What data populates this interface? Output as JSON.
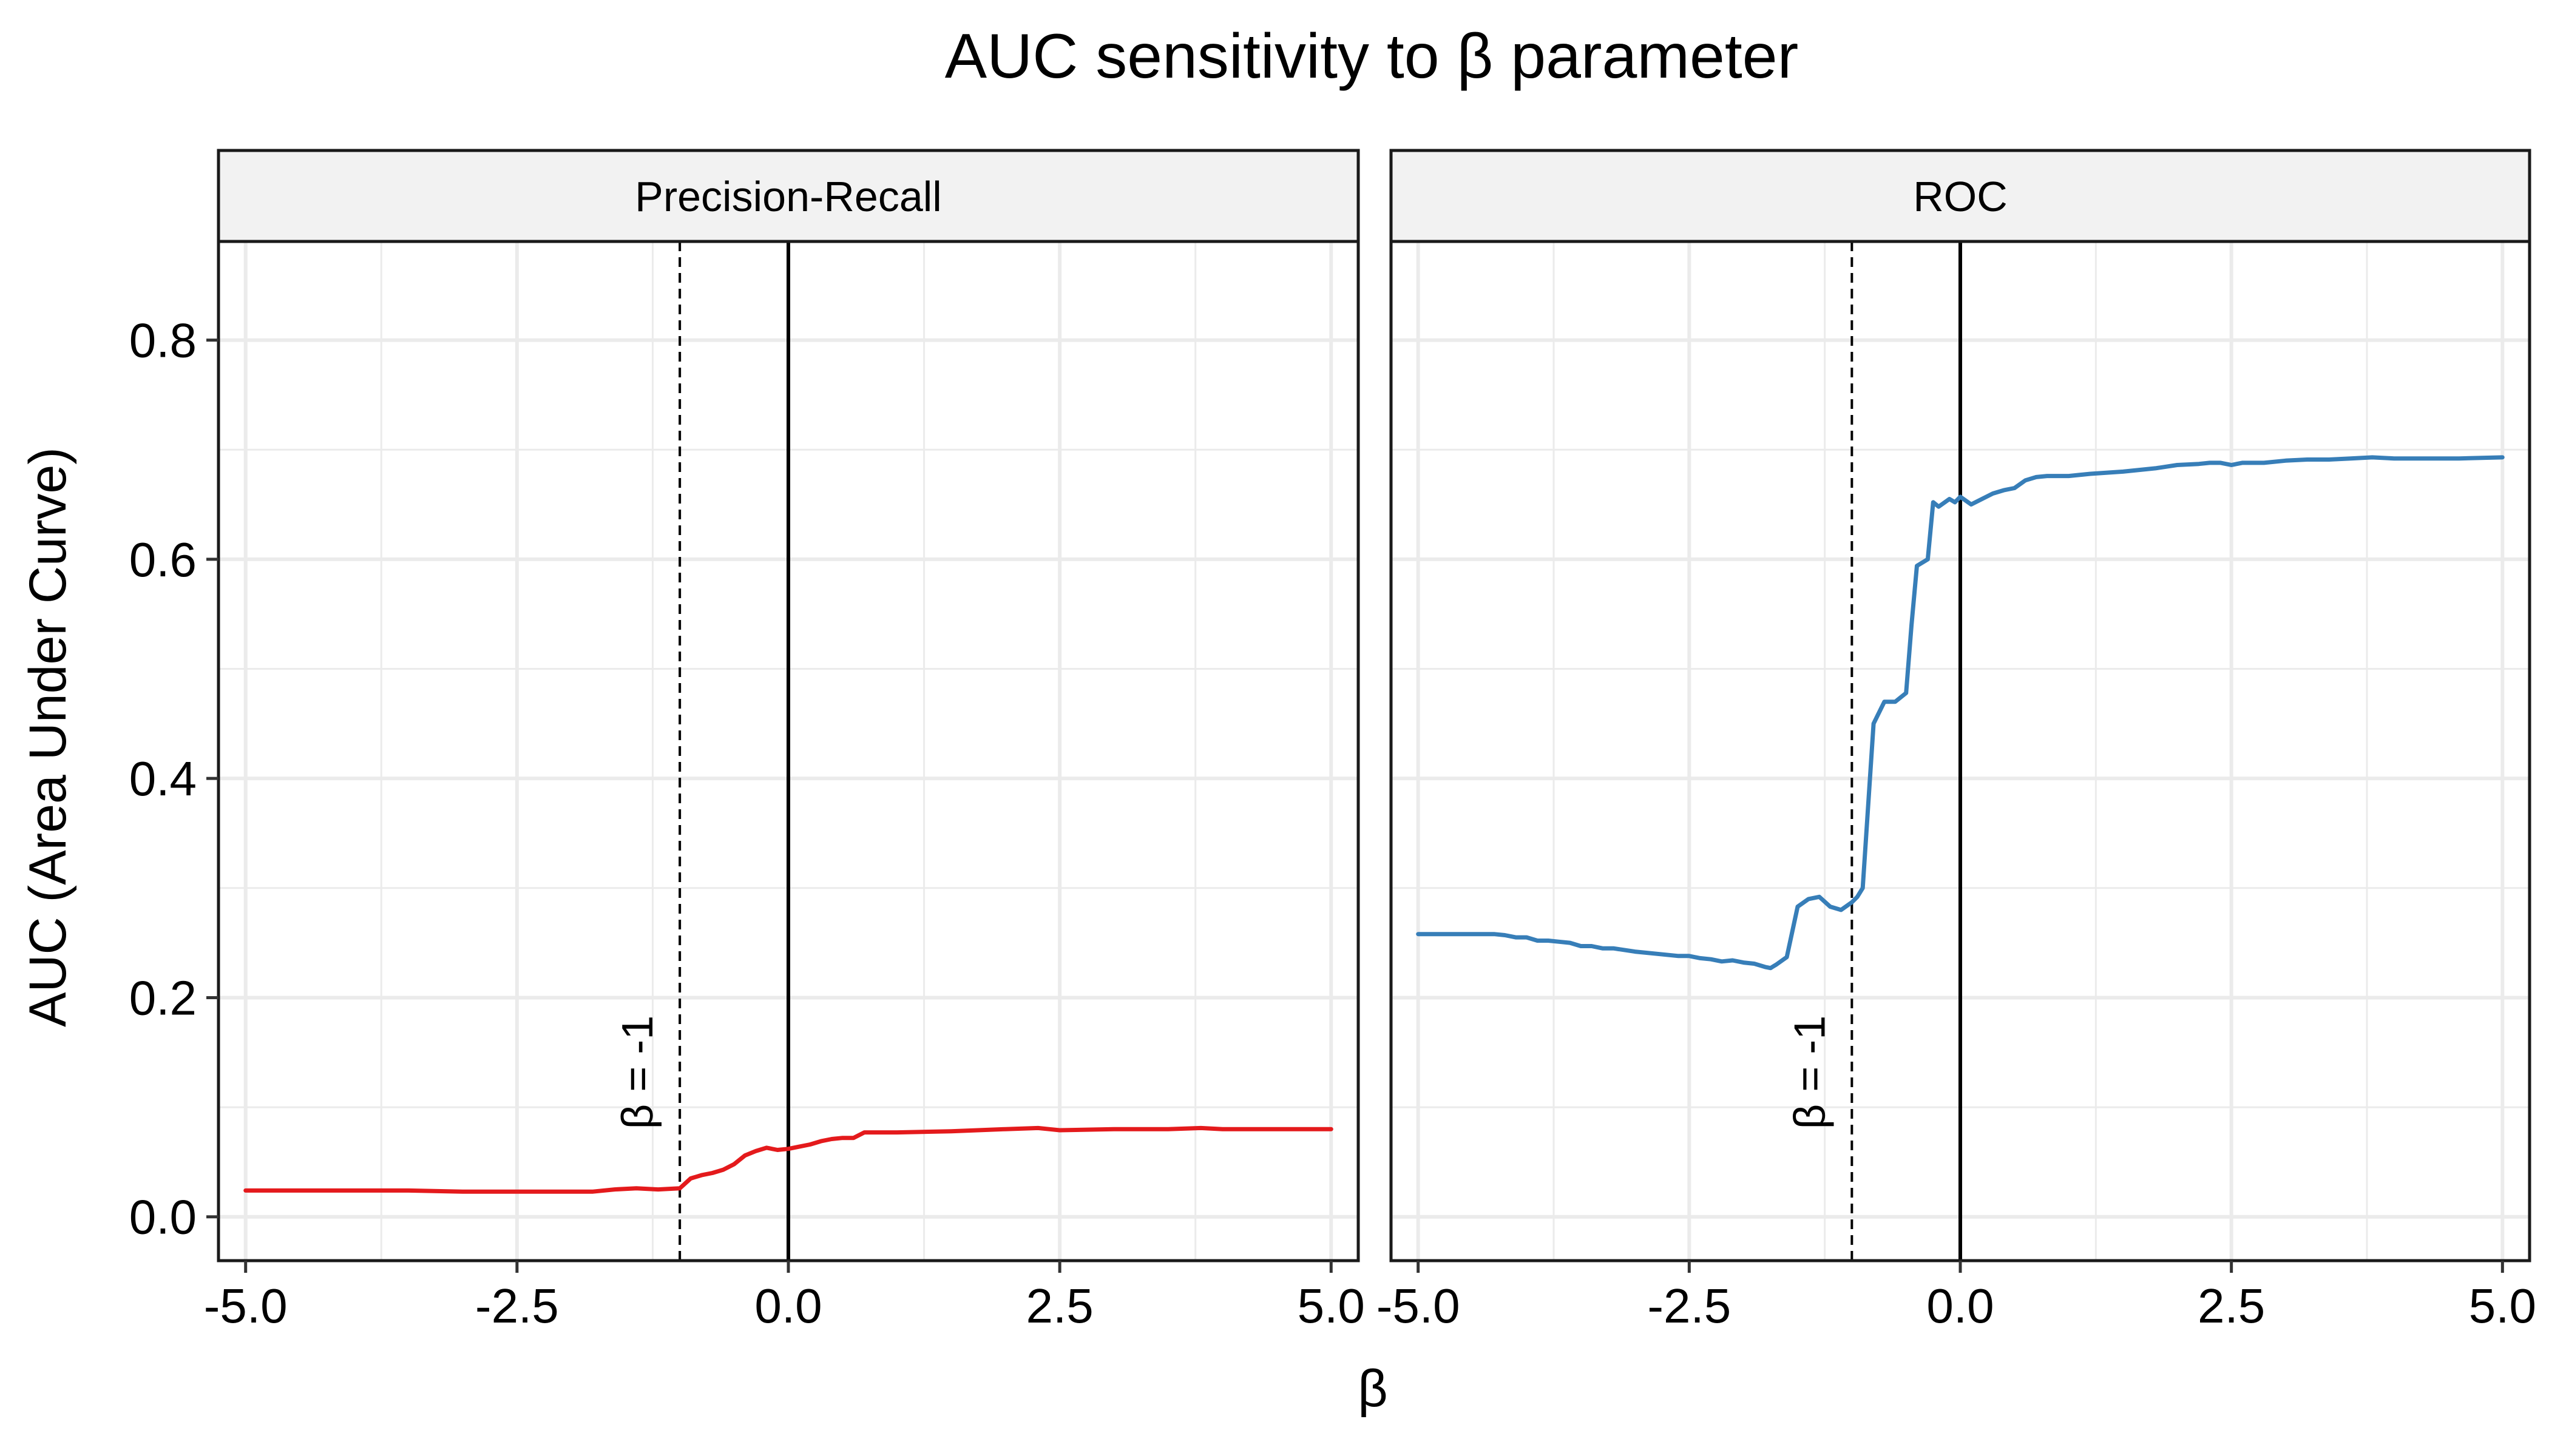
{
  "chart_data": {
    "type": "line",
    "title": "AUC sensitivity to β parameter",
    "xlabel": "β",
    "ylabel": "AUC (Area Under Curve)",
    "xlim": [
      -5.25,
      5.25
    ],
    "ylim": [
      -0.04,
      0.89
    ],
    "x_ticks": [
      "-5.0",
      "-2.5",
      "0.0",
      "2.5",
      "5.0"
    ],
    "y_ticks": [
      "0.0",
      "0.2",
      "0.4",
      "0.6",
      "0.8"
    ],
    "grid": true,
    "legend": "none",
    "reference_lines": [
      {
        "x": -1,
        "style": "dashed",
        "label": "β = -1"
      },
      {
        "x": 0,
        "style": "solid",
        "label": ""
      }
    ],
    "panels": [
      {
        "name": "Precision-Recall",
        "color": "#e41a1c",
        "x": [
          -5.0,
          -4.5,
          -4.0,
          -3.5,
          -3.0,
          -2.5,
          -2.0,
          -1.8,
          -1.6,
          -1.4,
          -1.2,
          -1.0,
          -0.9,
          -0.8,
          -0.7,
          -0.6,
          -0.5,
          -0.4,
          -0.3,
          -0.2,
          -0.1,
          0.0,
          0.1,
          0.2,
          0.3,
          0.4,
          0.5,
          0.6,
          0.7,
          0.8,
          1.0,
          1.5,
          2.0,
          2.3,
          2.4,
          2.5,
          3.0,
          3.5,
          3.8,
          4.0,
          4.5,
          5.0
        ],
        "y": [
          0.024,
          0.024,
          0.024,
          0.024,
          0.023,
          0.023,
          0.023,
          0.023,
          0.025,
          0.026,
          0.025,
          0.026,
          0.035,
          0.038,
          0.04,
          0.043,
          0.048,
          0.056,
          0.06,
          0.063,
          0.061,
          0.062,
          0.064,
          0.066,
          0.069,
          0.071,
          0.072,
          0.072,
          0.077,
          0.077,
          0.077,
          0.078,
          0.08,
          0.081,
          0.08,
          0.079,
          0.08,
          0.08,
          0.081,
          0.08,
          0.08,
          0.08
        ]
      },
      {
        "name": "ROC",
        "color": "#377eb8",
        "x": [
          -5.0,
          -4.5,
          -4.3,
          -4.2,
          -4.1,
          -4.0,
          -3.9,
          -3.8,
          -3.7,
          -3.6,
          -3.5,
          -3.4,
          -3.3,
          -3.2,
          -3.0,
          -2.8,
          -2.6,
          -2.5,
          -2.4,
          -2.3,
          -2.2,
          -2.1,
          -2.0,
          -1.9,
          -1.8,
          -1.75,
          -1.7,
          -1.6,
          -1.5,
          -1.4,
          -1.3,
          -1.2,
          -1.1,
          -1.0,
          -0.95,
          -0.9,
          -0.8,
          -0.7,
          -0.6,
          -0.5,
          -0.45,
          -0.4,
          -0.3,
          -0.25,
          -0.2,
          -0.1,
          -0.05,
          0.0,
          0.1,
          0.2,
          0.3,
          0.4,
          0.5,
          0.6,
          0.7,
          0.8,
          1.0,
          1.2,
          1.5,
          1.8,
          2.0,
          2.2,
          2.3,
          2.4,
          2.5,
          2.6,
          2.8,
          3.0,
          3.2,
          3.4,
          3.6,
          3.8,
          4.0,
          4.3,
          4.6,
          5.0
        ],
        "y": [
          0.258,
          0.258,
          0.258,
          0.257,
          0.255,
          0.255,
          0.252,
          0.252,
          0.251,
          0.25,
          0.247,
          0.247,
          0.245,
          0.245,
          0.242,
          0.24,
          0.238,
          0.238,
          0.236,
          0.235,
          0.233,
          0.234,
          0.232,
          0.231,
          0.228,
          0.227,
          0.23,
          0.237,
          0.283,
          0.29,
          0.292,
          0.283,
          0.28,
          0.287,
          0.292,
          0.3,
          0.45,
          0.47,
          0.47,
          0.478,
          0.54,
          0.594,
          0.6,
          0.652,
          0.648,
          0.655,
          0.652,
          0.657,
          0.65,
          0.655,
          0.66,
          0.663,
          0.665,
          0.672,
          0.675,
          0.676,
          0.676,
          0.678,
          0.68,
          0.683,
          0.686,
          0.687,
          0.688,
          0.688,
          0.686,
          0.688,
          0.688,
          0.69,
          0.691,
          0.691,
          0.692,
          0.693,
          0.692,
          0.692,
          0.692,
          0.693
        ]
      }
    ]
  }
}
